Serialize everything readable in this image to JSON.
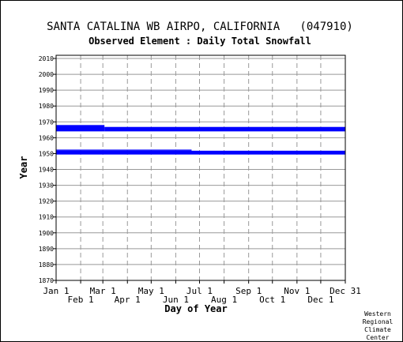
{
  "chart_data": {
    "type": "bar",
    "title": "SANTA CATALINA WB AIRPO, CALIFORNIA   (047910)",
    "subtitle": "Observed Element : Daily Total Snowfall",
    "xlabel": "Day of Year",
    "ylabel": "Year",
    "credit": [
      "Western",
      "Regional",
      "Climate",
      "Center"
    ],
    "x_range_days": [
      1,
      366
    ],
    "ylim": [
      1870,
      2012
    ],
    "y_ticks": [
      1870,
      1880,
      1890,
      1900,
      1910,
      1920,
      1930,
      1940,
      1950,
      1960,
      1970,
      1980,
      1990,
      2000,
      2010
    ],
    "x_ticks_top": [
      {
        "label": "Jan 1",
        "day": 1
      },
      {
        "label": "Mar 1",
        "day": 60
      },
      {
        "label": "May 1",
        "day": 121
      },
      {
        "label": "Jul 1",
        "day": 182
      },
      {
        "label": "Sep 1",
        "day": 244
      },
      {
        "label": "Nov 1",
        "day": 305
      },
      {
        "label": "Dec 31",
        "day": 366
      }
    ],
    "x_ticks_bottom": [
      {
        "label": "Feb 1",
        "day": 32
      },
      {
        "label": "Apr 1",
        "day": 91
      },
      {
        "label": "Jun 1",
        "day": 152
      },
      {
        "label": "Aug 1",
        "day": 213
      },
      {
        "label": "Oct 1",
        "day": 274
      },
      {
        "label": "Dec 1",
        "day": 335
      }
    ],
    "grid": true,
    "bar_color": "#0000ff",
    "records": [
      {
        "start_day": 1,
        "end_day": 366,
        "year_start": 1949.4,
        "year_end": 1951.8
      },
      {
        "start_day": 1,
        "end_day": 172,
        "year_start": 1951.8,
        "year_end": 1952.5
      },
      {
        "start_day": 1,
        "end_day": 62,
        "year_start": 1964.0,
        "year_end": 1968.0
      },
      {
        "start_day": 62,
        "end_day": 366,
        "year_start": 1964.0,
        "year_end": 1966.8
      }
    ]
  }
}
